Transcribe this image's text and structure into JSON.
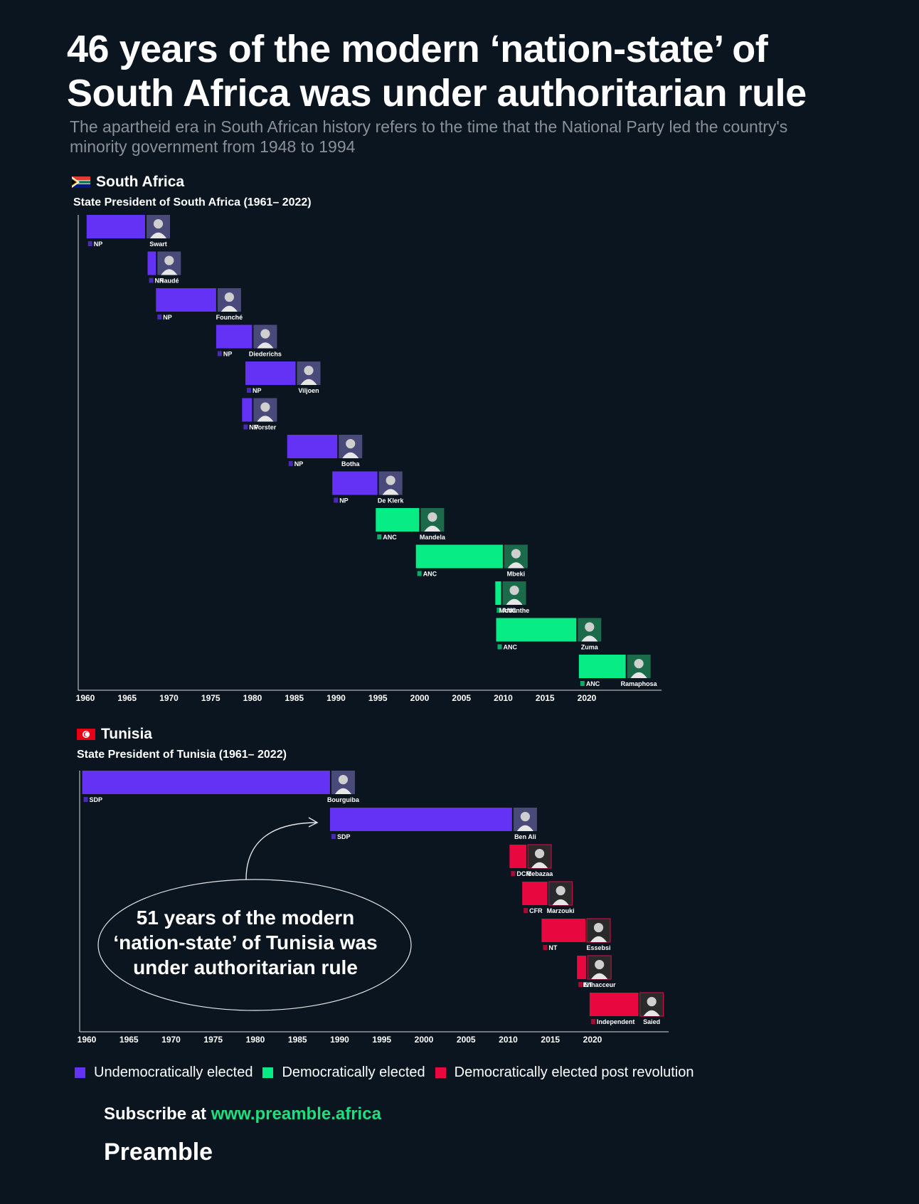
{
  "title_line1": "46 years of the modern ‘nation-state’ of",
  "title_line2": "South Africa was under authoritarian rule",
  "subtitle": "The apartheid era in South African history refers to the time that the National Party led the country's minority government from 1948 to 1994",
  "colors": {
    "background": "#0b1520",
    "undemocratic": "#6432f5",
    "democratic": "#08ec86",
    "post_revolution": "#e8073f",
    "subtitle": "#8b9096",
    "url": "#1ddf7f"
  },
  "chart_data": [
    {
      "type": "bar",
      "country": "South Africa",
      "flag_icon": "south-africa-flag-icon",
      "title": "State President of South Africa (1961– 2022)",
      "x_axis": {
        "ticks": [
          "1960",
          "1965",
          "1970",
          "1975",
          "1980",
          "1985",
          "1990",
          "1995",
          "2000",
          "2005",
          "2010",
          "2015",
          "2020"
        ]
      },
      "xlim": [
        1960,
        2028
      ],
      "series": [
        {
          "name": "Swart",
          "party": "NP",
          "start": 1961.0,
          "end": 1968.0,
          "category": "undemocratic"
        },
        {
          "name": "Naudé",
          "party": "NP",
          "start": 1968.3,
          "end": 1969.3,
          "category": "undemocratic"
        },
        {
          "name": "Founché",
          "party": "NP",
          "start": 1969.3,
          "end": 1976.5,
          "category": "undemocratic"
        },
        {
          "name": "Diederichs",
          "party": "NP",
          "start": 1976.5,
          "end": 1980.8,
          "category": "undemocratic"
        },
        {
          "name": "Viljoen",
          "party": "NP",
          "start": 1980.0,
          "end": 1986.0,
          "category": "undemocratic"
        },
        {
          "name": "Vorster",
          "party": "NP",
          "start": 1979.6,
          "end": 1980.8,
          "category": "undemocratic"
        },
        {
          "name": "Botha",
          "party": "NP",
          "start": 1985.0,
          "end": 1991.0,
          "category": "undemocratic"
        },
        {
          "name": "De Klerk",
          "party": "NP",
          "start": 1990.4,
          "end": 1995.8,
          "category": "undemocratic"
        },
        {
          "name": "Mandela",
          "party": "ANC",
          "start": 1995.6,
          "end": 2000.8,
          "category": "democratic"
        },
        {
          "name": "Mbeki",
          "party": "ANC",
          "start": 2000.4,
          "end": 2010.8,
          "category": "democratic"
        },
        {
          "name": "Motlanthe",
          "party": "ANC",
          "start": 2009.9,
          "end": 2010.6,
          "category": "democratic"
        },
        {
          "name": "Zuma",
          "party": "ANC",
          "start": 2010.0,
          "end": 2019.6,
          "category": "democratic"
        },
        {
          "name": "Ramaphosa",
          "party": "ANC",
          "start": 2019.9,
          "end": 2025.5,
          "category": "democratic"
        }
      ]
    },
    {
      "type": "bar",
      "country": "Tunisia",
      "flag_icon": "tunisia-flag-icon",
      "title": "State President of Tunisia (1961– 2022)",
      "x_axis": {
        "ticks": [
          "1960",
          "1965",
          "1970",
          "1975",
          "1980",
          "1985",
          "1990",
          "1995",
          "2000",
          "2005",
          "2010",
          "2015",
          "2020"
        ]
      },
      "xlim": [
        1960,
        2028
      ],
      "series": [
        {
          "name": "Bourguiba",
          "party": "SDP",
          "start": 1960.3,
          "end": 1989.7,
          "category": "undemocratic"
        },
        {
          "name": "Ben Ali",
          "party": "SDP",
          "start": 1989.7,
          "end": 2011.3,
          "category": "undemocratic"
        },
        {
          "name": "Mebazaa",
          "party": "DCR",
          "start": 2011.0,
          "end": 2013.0,
          "category": "post_revolution"
        },
        {
          "name": "Marzouki",
          "party": "CFR",
          "start": 2012.5,
          "end": 2015.5,
          "category": "post_revolution"
        },
        {
          "name": "Essebsi",
          "party": "NT",
          "start": 2014.8,
          "end": 2020.0,
          "category": "post_revolution"
        },
        {
          "name": "Ennacceur",
          "party": "NT",
          "start": 2019.0,
          "end": 2020.1,
          "category": "post_revolution"
        },
        {
          "name": "Saied",
          "party": "Independent",
          "start": 2020.5,
          "end": 2026.3,
          "category": "post_revolution"
        }
      ],
      "annotation": "51 years of the modern ‘nation-state’ of Tunisia was under authoritarian rule"
    }
  ],
  "legend": [
    {
      "label": "Undemocratically elected",
      "category": "undemocratic"
    },
    {
      "label": "Democratically elected",
      "category": "democratic"
    },
    {
      "label": "Democratically elected post revolution",
      "category": "post_revolution"
    }
  ],
  "subscribe_prefix": "Subscribe at ",
  "subscribe_url": "www.preamble.africa",
  "brand": "Preamble"
}
